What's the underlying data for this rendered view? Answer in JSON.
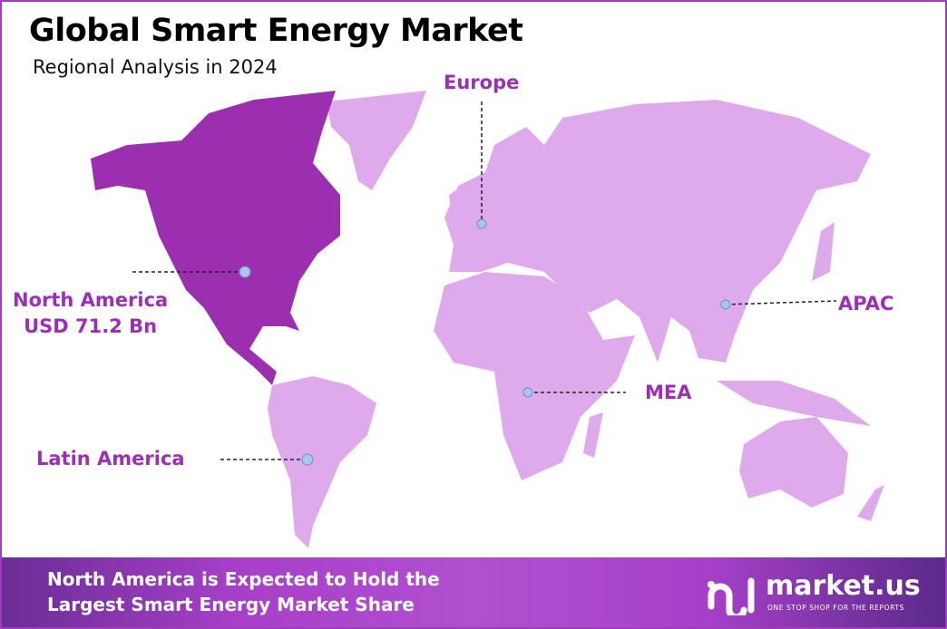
{
  "header": {
    "title": "Global Smart Energy Market",
    "subtitle": "Regional Analysis in 2024"
  },
  "regions": [
    {
      "name": "North America",
      "value": "USD 71.2 Bn",
      "highlighted": true
    },
    {
      "name": "Europe"
    },
    {
      "name": "APAC"
    },
    {
      "name": "MEA"
    },
    {
      "name": "Latin America"
    }
  ],
  "colors": {
    "highlight": "#9b2fb0",
    "other": "#dfaaec",
    "label": "#9b2fb5",
    "border": "#a23bbd",
    "marker": "#a9c4ee"
  },
  "banner": {
    "line1": "North America is Expected to Hold the",
    "line2": "Largest Smart Energy Market Share"
  },
  "logo": {
    "name": "market.us",
    "tagline": "ONE STOP SHOP FOR THE REPORTS"
  }
}
